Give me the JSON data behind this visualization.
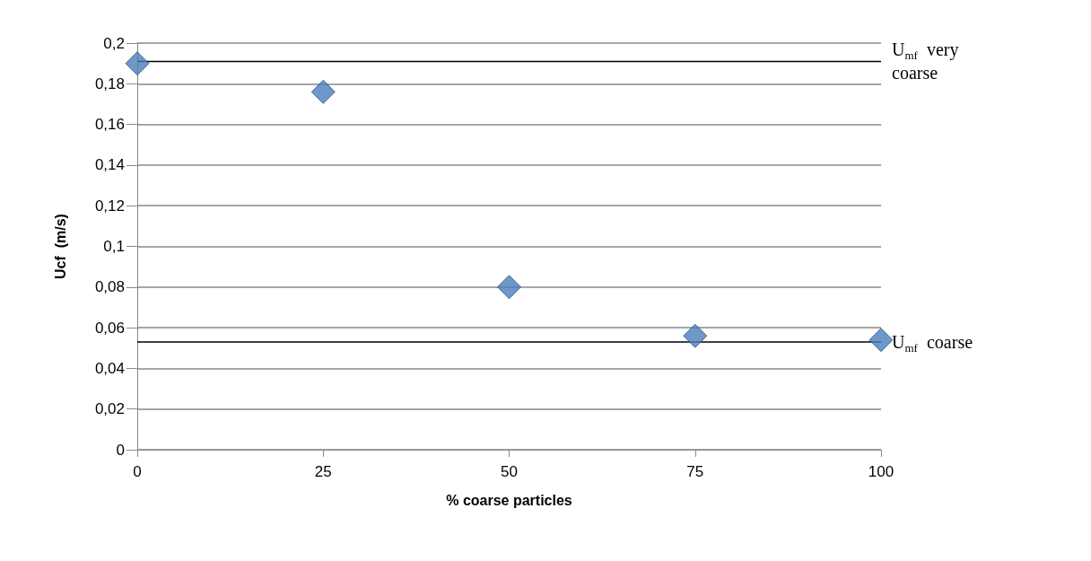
{
  "chart_data": {
    "type": "scatter",
    "xlabel": "% coarse particles",
    "ylabel": "Ucf  (m/s)",
    "x": [
      0,
      25,
      50,
      75,
      100
    ],
    "series": [
      {
        "color": "#4a7ebb",
        "values": [
          0.19,
          0.176,
          0.08,
          0.056,
          0.054
        ]
      }
    ],
    "xlim": [
      0,
      100
    ],
    "xticks": [
      0,
      25,
      50,
      75,
      100
    ],
    "ylim": [
      0,
      0.2
    ],
    "yticks": [
      0,
      {
        "value": 0.02,
        "label": "0,02"
      },
      {
        "value": 0.04,
        "label": "0,04"
      },
      {
        "value": 0.06,
        "label": "0,06"
      },
      {
        "value": 0.08,
        "label": "0,08"
      },
      {
        "value": 0.1,
        "label": "0,1"
      },
      {
        "value": 0.12,
        "label": "0,12"
      },
      {
        "value": 0.14,
        "label": "0,14"
      },
      {
        "value": 0.16,
        "label": "0,16"
      },
      {
        "value": 0.18,
        "label": "0,18"
      },
      {
        "value": 0.2,
        "label": "0,2"
      }
    ],
    "ref_lines": [
      {
        "axis": "y",
        "value": 0.191,
        "label": "U$_{mf}$ very coarse",
        "color": "#000000"
      },
      {
        "axis": "y",
        "value": 0.053,
        "label": "U$_{mf}$ coarse",
        "color": "#000000"
      }
    ],
    "grid": "y",
    "marker": "diamond"
  }
}
